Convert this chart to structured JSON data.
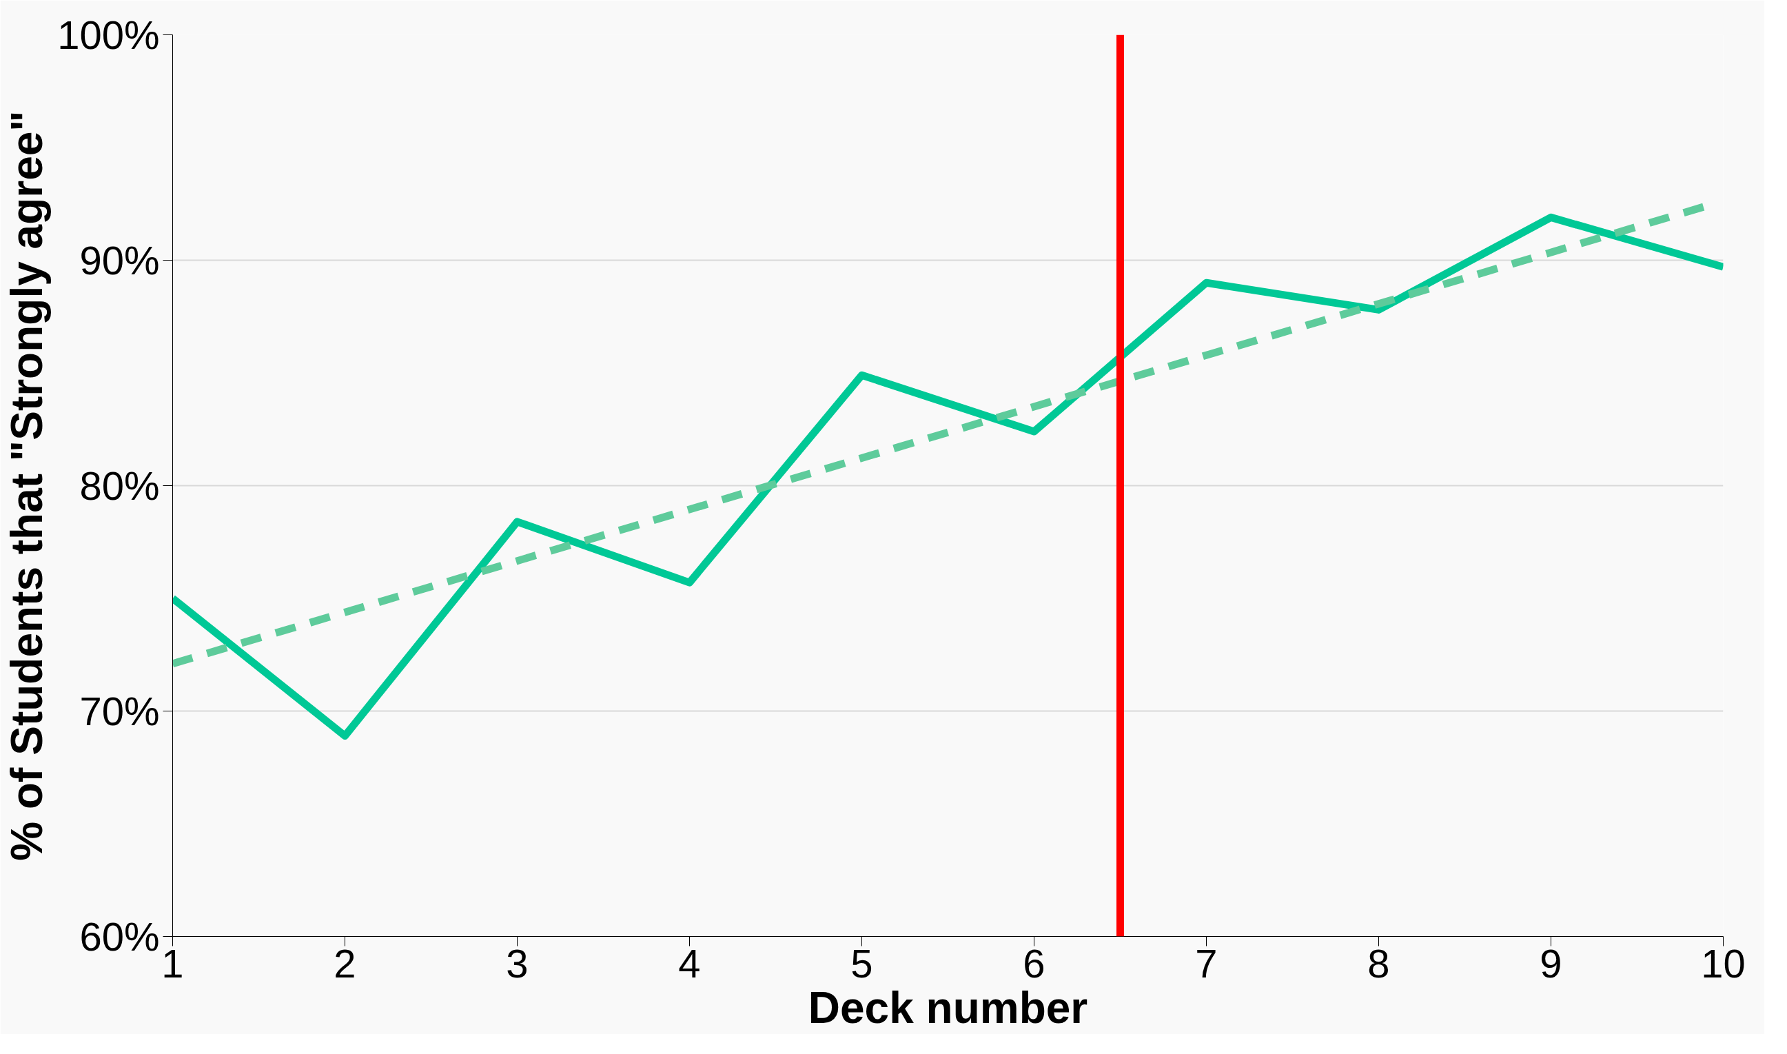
{
  "chart_data": {
    "type": "line",
    "xlabel": "Deck number",
    "ylabel": "% of Students that \"Strongly agree\"",
    "x": [
      1,
      2,
      3,
      4,
      5,
      6,
      7,
      8,
      9,
      10
    ],
    "series": [
      {
        "color": "#00c896",
        "values": [
          75.0,
          68.9,
          78.4,
          75.7,
          84.9,
          82.4,
          89.0,
          87.8,
          91.9,
          89.7
        ]
      },
      {
        "type": "line",
        "color": "#5ecb9b",
        "line_style": "dashed",
        "x": [
          1,
          9.9
        ],
        "values": [
          72.1,
          92.4
        ]
      }
    ],
    "xlim": [
      1,
      10
    ],
    "xticks": [
      1,
      2,
      3,
      4,
      5,
      6,
      7,
      8,
      9,
      10
    ],
    "ylim": [
      60,
      100
    ],
    "yticks": [
      {
        "value": 60,
        "label": "60%"
      },
      {
        "value": 70,
        "label": "70%"
      },
      {
        "value": 80,
        "label": "80%"
      },
      {
        "value": 90,
        "label": "90%"
      },
      {
        "value": 100,
        "label": "100%"
      }
    ],
    "ref_lines": [
      {
        "axis": "x",
        "value": 6.5,
        "color": "#ff0000"
      }
    ],
    "grid": "y",
    "line_style": "solid",
    "marker": "none"
  }
}
